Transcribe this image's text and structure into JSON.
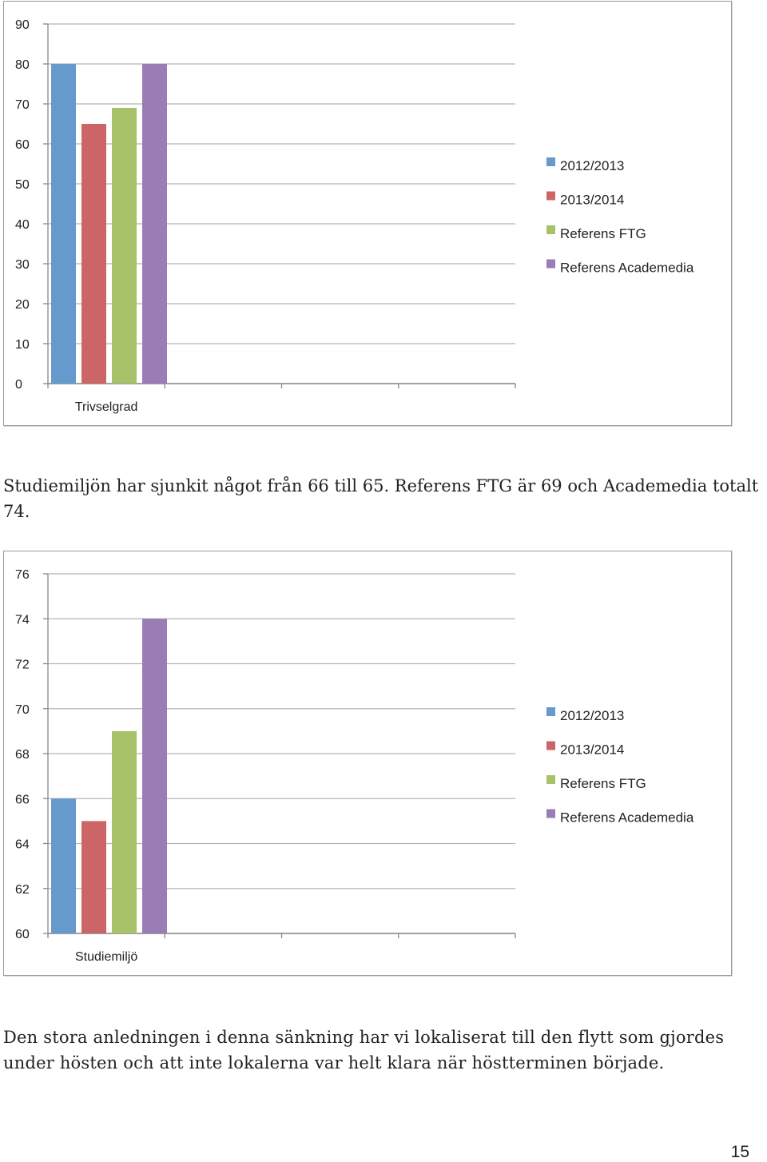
{
  "chart_data": [
    {
      "type": "bar",
      "categories": [
        "Trivselgrad"
      ],
      "series": [
        {
          "name": "2012/2013",
          "values": [
            80
          ],
          "color": "#6699cc"
        },
        {
          "name": "2013/2014",
          "values": [
            65
          ],
          "color": "#cc6666"
        },
        {
          "name": "Referens FTG",
          "values": [
            69
          ],
          "color": "#a8c26a"
        },
        {
          "name": "Referens Academedia",
          "values": [
            80
          ],
          "color": "#9a7db5"
        }
      ],
      "ylim": [
        0,
        90
      ],
      "yticks": [
        "0",
        "10",
        "20",
        "30",
        "40",
        "50",
        "60",
        "70",
        "80",
        "90"
      ],
      "title": "",
      "xlabel": "",
      "ylabel": "",
      "grid": true,
      "legend": "right"
    },
    {
      "type": "bar",
      "categories": [
        "Studiemiljö"
      ],
      "series": [
        {
          "name": "2012/2013",
          "values": [
            66
          ],
          "color": "#6699cc"
        },
        {
          "name": "2013/2014",
          "values": [
            65
          ],
          "color": "#cc6666"
        },
        {
          "name": "Referens FTG",
          "values": [
            69
          ],
          "color": "#a8c26a"
        },
        {
          "name": "Referens Academedia",
          "values": [
            74
          ],
          "color": "#9a7db5"
        }
      ],
      "ylim": [
        60,
        76
      ],
      "yticks": [
        "60",
        "62",
        "64",
        "66",
        "68",
        "70",
        "72",
        "74",
        "76"
      ],
      "title": "",
      "xlabel": "",
      "ylabel": "",
      "grid": true,
      "legend": "right"
    }
  ],
  "text": {
    "paragraph1": "Studiemiljön har sjunkit något från 66 till 65. Referens FTG är 69 och Academedia totalt 74.",
    "paragraph2": "Den stora anledningen i denna sänkning har vi lokaliserat till den flytt som gjordes under hösten och att inte lokalerna var helt klara när höstterminen började.",
    "page_number": "15"
  }
}
